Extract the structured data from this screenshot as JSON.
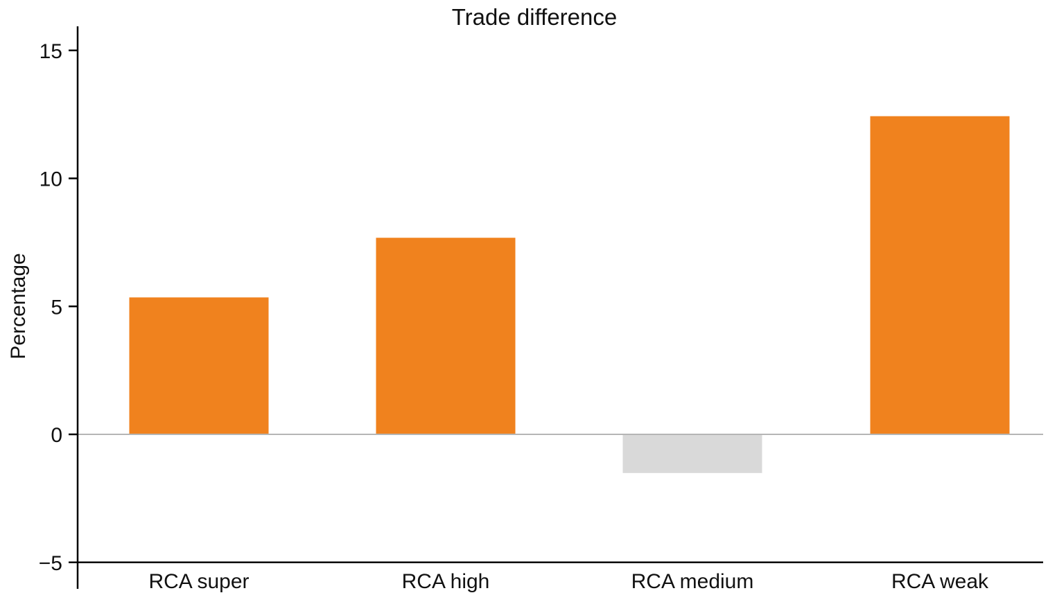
{
  "chart_data": {
    "type": "bar",
    "title": "Trade difference",
    "xlabel": "",
    "ylabel": "Percentage",
    "categories": [
      "RCA super",
      "RCA high",
      "RCA medium",
      "RCA weak"
    ],
    "values": [
      5.35,
      7.68,
      -1.51,
      12.43
    ],
    "ylim": [
      -5,
      16
    ],
    "yticks": [
      -5,
      0,
      5,
      10,
      15
    ],
    "ytick_labels": [
      "−5",
      "0",
      "5",
      "10",
      "15"
    ],
    "grid": false,
    "colors": {
      "positive": "#f0821e",
      "negative": "#d9d9d9",
      "zero_line": "#b5b5b5",
      "axis": "#000000"
    }
  }
}
